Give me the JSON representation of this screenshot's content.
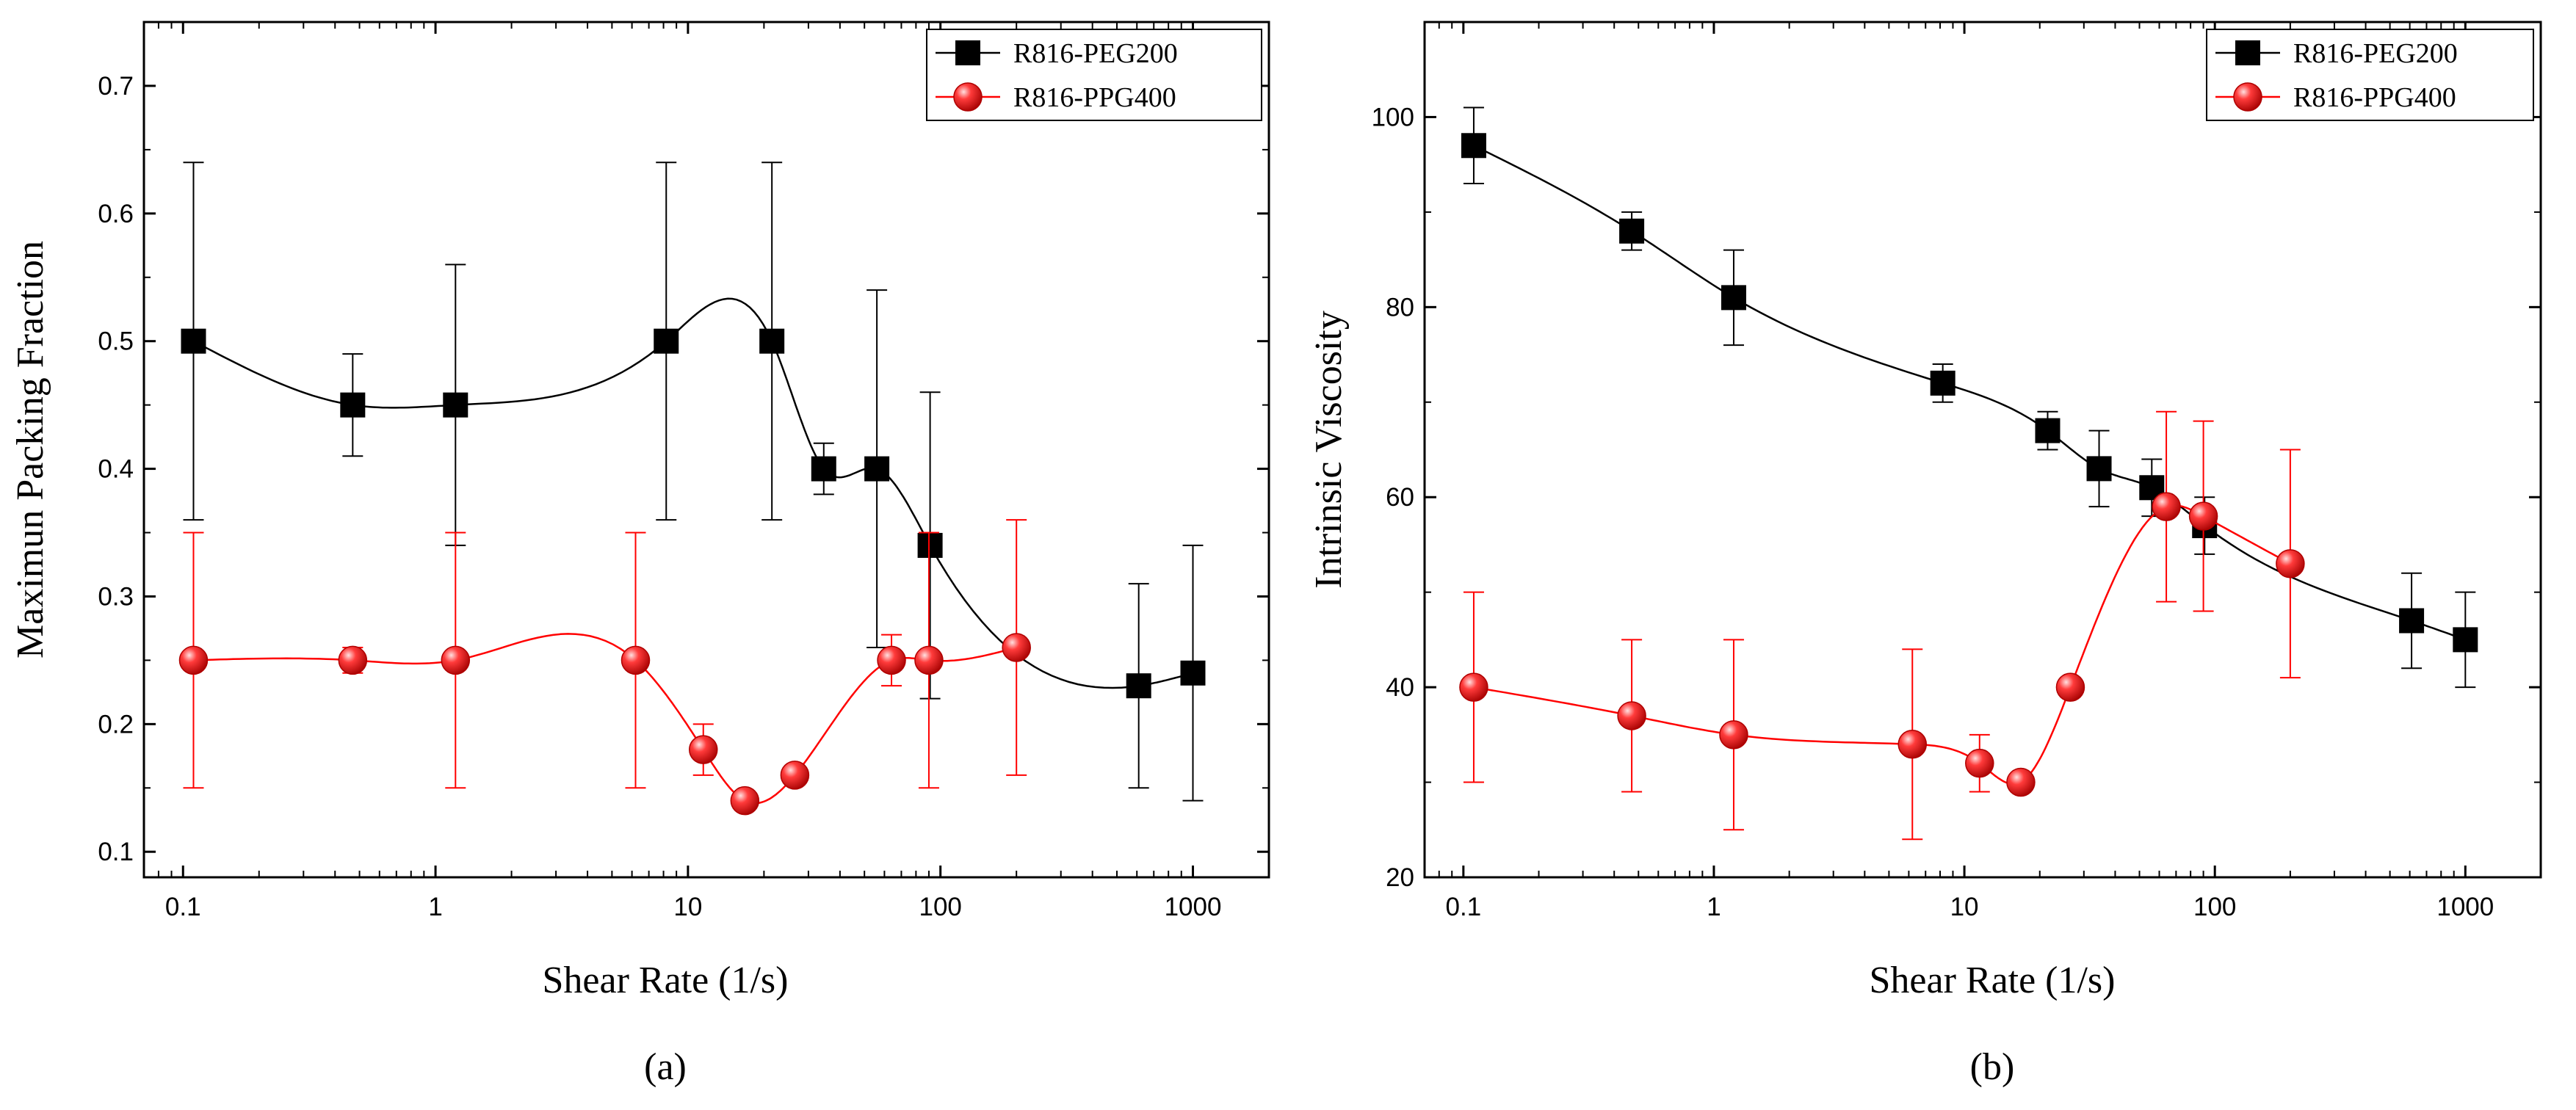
{
  "chart_data": [
    {
      "type": "scatter",
      "panel_caption": "(a)",
      "xlabel": "Shear Rate (1/s)",
      "ylabel": "Maximun Packing Fraction",
      "xscale": "log",
      "xlim": [
        0.07,
        2000
      ],
      "ylim": [
        0.08,
        0.75
      ],
      "xticks": [
        0.1,
        1,
        10,
        100,
        1000
      ],
      "xtick_labels": [
        "0.1",
        "1",
        "10",
        "100",
        "1000"
      ],
      "yticks": [
        0.1,
        0.2,
        0.3,
        0.4,
        0.5,
        0.6,
        0.7
      ],
      "ytick_labels": [
        "0.1",
        "0.2",
        "0.3",
        "0.4",
        "0.5",
        "0.6",
        "0.7"
      ],
      "legend_position": "top-right",
      "series": [
        {
          "name": "R816-PEG200",
          "color": "#000000",
          "marker": "square",
          "x": [
            0.11,
            0.47,
            1.2,
            8.2,
            21.5,
            34.5,
            56,
            91,
            610,
            1000
          ],
          "y": [
            0.5,
            0.45,
            0.45,
            0.5,
            0.5,
            0.4,
            0.4,
            0.34,
            0.23,
            0.24
          ],
          "err_low": [
            0.36,
            0.41,
            0.34,
            0.36,
            0.36,
            0.38,
            0.26,
            0.22,
            0.15,
            0.14
          ],
          "err_high": [
            0.64,
            0.49,
            0.56,
            0.64,
            0.64,
            0.42,
            0.54,
            0.46,
            0.31,
            0.34
          ]
        },
        {
          "name": "R816-PPG400",
          "color": "#ff0000",
          "marker": "sphere",
          "x": [
            0.11,
            0.47,
            1.2,
            6.2,
            11.5,
            16.8,
            26.5,
            64,
            90,
            200
          ],
          "y": [
            0.25,
            0.25,
            0.25,
            0.25,
            0.18,
            0.14,
            0.16,
            0.25,
            0.25,
            0.26
          ],
          "err_low": [
            0.15,
            0.24,
            0.15,
            0.15,
            0.16,
            0.14,
            0.16,
            0.23,
            0.15,
            0.16
          ],
          "err_high": [
            0.35,
            0.26,
            0.35,
            0.35,
            0.2,
            0.14,
            0.16,
            0.27,
            0.35,
            0.36
          ]
        }
      ]
    },
    {
      "type": "scatter",
      "panel_caption": "(b)",
      "xlabel": "Shear Rate (1/s)",
      "ylabel": "Intrinsic Viscosity",
      "xscale": "log",
      "xlim": [
        0.07,
        2000
      ],
      "ylim": [
        20,
        110
      ],
      "xticks": [
        0.1,
        1,
        10,
        100,
        1000
      ],
      "xtick_labels": [
        "0.1",
        "1",
        "10",
        "100",
        "1000"
      ],
      "yticks": [
        20,
        40,
        60,
        80,
        100
      ],
      "ytick_labels": [
        "20",
        "40",
        "60",
        "80",
        "100"
      ],
      "legend_position": "top-right",
      "series": [
        {
          "name": "R816-PEG200",
          "color": "#000000",
          "marker": "square",
          "x": [
            0.11,
            0.47,
            1.2,
            8.2,
            21.5,
            34.5,
            56,
            91,
            610,
            1000
          ],
          "y": [
            97,
            88,
            81,
            72,
            67,
            63,
            61,
            57,
            47,
            45
          ],
          "err_low": [
            93,
            86,
            76,
            70,
            65,
            59,
            58,
            54,
            42,
            40
          ],
          "err_high": [
            101,
            90,
            86,
            74,
            69,
            67,
            64,
            60,
            52,
            50
          ]
        },
        {
          "name": "R816-PPG400",
          "color": "#ff0000",
          "marker": "sphere",
          "x": [
            0.11,
            0.47,
            1.2,
            6.2,
            11.5,
            16.8,
            26.5,
            64,
            90,
            200
          ],
          "y": [
            40,
            37,
            35,
            34,
            32,
            30,
            40,
            59,
            58,
            53
          ],
          "err_low": [
            30,
            29,
            25,
            24,
            29,
            30,
            40,
            49,
            48,
            41
          ],
          "err_high": [
            50,
            45,
            45,
            44,
            35,
            30,
            40,
            69,
            68,
            65
          ]
        }
      ]
    }
  ]
}
